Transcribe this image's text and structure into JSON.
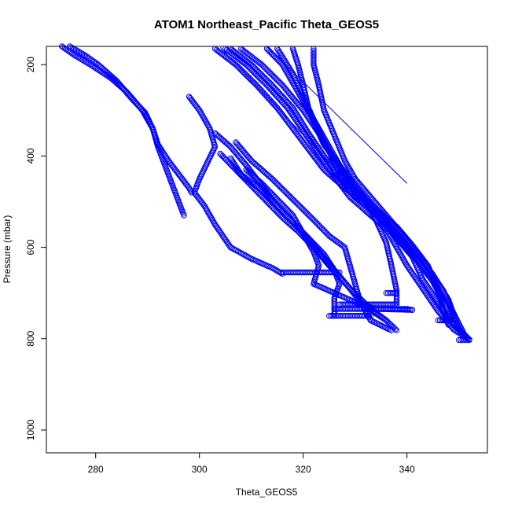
{
  "chart_data": {
    "type": "scatter",
    "title": "ATOM1 Northeast_Pacific Theta_GEOS5",
    "xlabel": "Theta_GEOS5",
    "ylabel": "Pressure (mbar)",
    "xlim": [
      270.5,
      355.5
    ],
    "ylim": [
      1050,
      160
    ],
    "y_reversed": true,
    "x_ticks": [
      280,
      300,
      320,
      340
    ],
    "y_ticks": [
      200,
      400,
      600,
      800,
      1000
    ],
    "grid": false,
    "legend": "none",
    "marker": "open-circle",
    "color": "#0000ff",
    "series": [
      {
        "values": [
          [
            273.5,
            160
          ],
          [
            276,
            180
          ],
          [
            279,
            200
          ],
          [
            283,
            230
          ],
          [
            286,
            260
          ],
          [
            289,
            300
          ],
          [
            291,
            340
          ],
          [
            292,
            380
          ],
          [
            293,
            410
          ],
          [
            294,
            440
          ],
          [
            295,
            470
          ],
          [
            296,
            500
          ],
          [
            297,
            530
          ]
        ]
      },
      {
        "values": [
          [
            275,
            160
          ],
          [
            278,
            180
          ],
          [
            280.5,
            200
          ],
          [
            284,
            235
          ],
          [
            287,
            275
          ],
          [
            289.5,
            305
          ],
          [
            291,
            340
          ],
          [
            292,
            375
          ],
          [
            294,
            410
          ],
          [
            296,
            440
          ],
          [
            298,
            470
          ],
          [
            298.5,
            480
          ]
        ]
      },
      {
        "values": [
          [
            298,
            270
          ],
          [
            300,
            300
          ],
          [
            302,
            340
          ],
          [
            303,
            380
          ],
          [
            300,
            450
          ],
          [
            299,
            480
          ],
          [
            301,
            510
          ],
          [
            303,
            550
          ],
          [
            306,
            600
          ],
          [
            310,
            625
          ],
          [
            314,
            645
          ],
          [
            316,
            658
          ]
        ]
      },
      {
        "values": [
          [
            303,
            350
          ],
          [
            306,
            380
          ],
          [
            309,
            420
          ],
          [
            312,
            465
          ],
          [
            315,
            510
          ],
          [
            318,
            545
          ],
          [
            321,
            580
          ],
          [
            324,
            615
          ],
          [
            326,
            650
          ],
          [
            327,
            680
          ],
          [
            326,
            710
          ],
          [
            326,
            750
          ]
        ]
      },
      {
        "values": [
          [
            304,
            395
          ],
          [
            307,
            430
          ],
          [
            310,
            465
          ],
          [
            313,
            500
          ],
          [
            316,
            535
          ],
          [
            319,
            565
          ],
          [
            322,
            600
          ],
          [
            325,
            640
          ],
          [
            329,
            690
          ],
          [
            333,
            735
          ],
          [
            336,
            760
          ],
          [
            338,
            782
          ]
        ]
      },
      {
        "values": [
          [
            307,
            370
          ],
          [
            310,
            410
          ],
          [
            314,
            450
          ],
          [
            318,
            495
          ],
          [
            322,
            540
          ],
          [
            325,
            575
          ],
          [
            328,
            600
          ],
          [
            329,
            640
          ],
          [
            330,
            680
          ],
          [
            331,
            720
          ],
          [
            333,
            760
          ],
          [
            337,
            782
          ]
        ]
      },
      {
        "values": [
          [
            306,
            405
          ],
          [
            308,
            440
          ],
          [
            312,
            475
          ],
          [
            315,
            510
          ],
          [
            318,
            545
          ],
          [
            321,
            580
          ],
          [
            323,
            610
          ],
          [
            326,
            650
          ],
          [
            329,
            690
          ],
          [
            331,
            720
          ],
          [
            334,
            745
          ],
          [
            336,
            760
          ]
        ]
      },
      {
        "values": [
          [
            309,
            430
          ],
          [
            312,
            460
          ],
          [
            315,
            495
          ],
          [
            318,
            530
          ],
          [
            320,
            570
          ],
          [
            322,
            610
          ],
          [
            323,
            640
          ],
          [
            322,
            680
          ],
          [
            326,
            700
          ],
          [
            330,
            720
          ],
          [
            334,
            735
          ],
          [
            341,
            737
          ]
        ]
      },
      {
        "values": [
          [
            303,
            165
          ],
          [
            307,
            200
          ],
          [
            311,
            245
          ],
          [
            315,
            295
          ],
          [
            318,
            340
          ],
          [
            321,
            385
          ],
          [
            324,
            430
          ],
          [
            328,
            470
          ],
          [
            332,
            500
          ],
          [
            334,
            540
          ],
          [
            336,
            590
          ],
          [
            337,
            640
          ],
          [
            338,
            695
          ],
          [
            338,
            725
          ]
        ]
      },
      {
        "values": [
          [
            305,
            165
          ],
          [
            309,
            200
          ],
          [
            313,
            245
          ],
          [
            317,
            295
          ],
          [
            320,
            345
          ],
          [
            323,
            395
          ],
          [
            326,
            445
          ],
          [
            329,
            490
          ],
          [
            331,
            510
          ],
          [
            333,
            530
          ],
          [
            336,
            560
          ],
          [
            338,
            600
          ],
          [
            340,
            640
          ],
          [
            343,
            690
          ],
          [
            346,
            740
          ],
          [
            349,
            780
          ],
          [
            352,
            802
          ]
        ]
      },
      {
        "values": [
          [
            306,
            165
          ],
          [
            310,
            200
          ],
          [
            314,
            245
          ],
          [
            318,
            295
          ],
          [
            321,
            350
          ],
          [
            324,
            400
          ],
          [
            327,
            450
          ],
          [
            330,
            490
          ],
          [
            333,
            515
          ],
          [
            336,
            545
          ],
          [
            339,
            585
          ],
          [
            342,
            625
          ],
          [
            345,
            670
          ],
          [
            347,
            720
          ],
          [
            349,
            770
          ],
          [
            352,
            802
          ]
        ]
      },
      {
        "values": [
          [
            308,
            165
          ],
          [
            312,
            200
          ],
          [
            316,
            245
          ],
          [
            320,
            300
          ],
          [
            323,
            350
          ],
          [
            326,
            410
          ],
          [
            329,
            460
          ],
          [
            332,
            495
          ],
          [
            335,
            525
          ],
          [
            338,
            560
          ],
          [
            341,
            600
          ],
          [
            344,
            645
          ],
          [
            347,
            695
          ],
          [
            349,
            745
          ],
          [
            351,
            790
          ],
          [
            352,
            802
          ]
        ]
      },
      {
        "values": [
          [
            313,
            165
          ],
          [
            316,
            200
          ],
          [
            319,
            260
          ],
          [
            322,
            320
          ],
          [
            325,
            380
          ],
          [
            328,
            440
          ],
          [
            331,
            490
          ],
          [
            334,
            520
          ],
          [
            338,
            555
          ],
          [
            341,
            595
          ],
          [
            344,
            640
          ],
          [
            346,
            690
          ],
          [
            347,
            740
          ],
          [
            348,
            770
          ]
        ]
      },
      {
        "values": [
          [
            315,
            165
          ],
          [
            318,
            220
          ],
          [
            320,
            270
          ],
          [
            322,
            325
          ],
          [
            324,
            375
          ],
          [
            327,
            420
          ],
          [
            330,
            465
          ],
          [
            333,
            510
          ],
          [
            335,
            540
          ],
          [
            338,
            580
          ],
          [
            341,
            620
          ],
          [
            343,
            670
          ],
          [
            346,
            720
          ],
          [
            349,
            770
          ],
          [
            352,
            802
          ]
        ]
      },
      {
        "values": [
          [
            318,
            165
          ],
          [
            319,
            200
          ],
          [
            320,
            245
          ],
          [
            321,
            295
          ],
          [
            323,
            345
          ],
          [
            325,
            390
          ],
          [
            327,
            440
          ],
          [
            330,
            480
          ],
          [
            333,
            510
          ],
          [
            336,
            550
          ],
          [
            339,
            590
          ],
          [
            342,
            630
          ],
          [
            345,
            675
          ],
          [
            347,
            720
          ]
        ]
      },
      {
        "values": [
          [
            322,
            165
          ],
          [
            322,
            200
          ],
          [
            323,
            245
          ],
          [
            324,
            300
          ],
          [
            326,
            355
          ],
          [
            328,
            410
          ],
          [
            330,
            450
          ],
          [
            333,
            490
          ],
          [
            336,
            530
          ],
          [
            339,
            570
          ],
          [
            342,
            615
          ],
          [
            345,
            660
          ],
          [
            348,
            715
          ],
          [
            350,
            780
          ],
          [
            352,
            802
          ]
        ]
      },
      {
        "values": [
          [
            316,
            655
          ],
          [
            318,
            655
          ],
          [
            320,
            655
          ],
          [
            322,
            655
          ],
          [
            324,
            655
          ],
          [
            326,
            655
          ],
          [
            327,
            655
          ]
        ]
      },
      {
        "values": [
          [
            327,
            725
          ],
          [
            329,
            725
          ],
          [
            331,
            725
          ],
          [
            333,
            725
          ],
          [
            335,
            725
          ],
          [
            337,
            725
          ],
          [
            338,
            725
          ]
        ]
      },
      {
        "values": [
          [
            326,
            735
          ],
          [
            328,
            735
          ],
          [
            330,
            735
          ],
          [
            332,
            735
          ],
          [
            334,
            735
          ],
          [
            336,
            735
          ],
          [
            338,
            735
          ],
          [
            340,
            735
          ],
          [
            341,
            737
          ]
        ]
      },
      {
        "values": [
          [
            325,
            750
          ],
          [
            327,
            750
          ],
          [
            329,
            750
          ],
          [
            331,
            750
          ],
          [
            333,
            750
          ]
        ]
      },
      {
        "values": [
          [
            336,
            700
          ],
          [
            337,
            700
          ],
          [
            338,
            700
          ]
        ]
      },
      {
        "values": [
          [
            346,
            760
          ],
          [
            348,
            760
          ],
          [
            349,
            760
          ]
        ]
      },
      {
        "values": [
          [
            350,
            803
          ],
          [
            351,
            803
          ],
          [
            352,
            803
          ]
        ]
      }
    ],
    "line_segments": [
      [
        [
          304,
          162
        ],
        [
          328,
          450
        ]
      ],
      [
        [
          313,
          160
        ],
        [
          340,
          460
        ]
      ]
    ]
  }
}
